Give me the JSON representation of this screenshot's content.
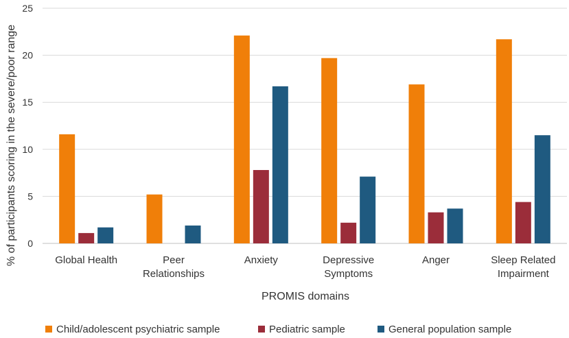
{
  "chart_data": {
    "type": "bar",
    "title": "",
    "xlabel": "PROMIS domains",
    "ylabel": "% of participants scoring in the severe/poor range",
    "ylim": [
      0,
      25
    ],
    "yticks": [
      0,
      5,
      10,
      15,
      20,
      25
    ],
    "grid": true,
    "legend_position": "bottom",
    "categories": [
      [
        "Global Health"
      ],
      [
        "Peer",
        "Relationships"
      ],
      [
        "Anxiety"
      ],
      [
        "Depressive",
        "Symptoms"
      ],
      [
        "Anger"
      ],
      [
        "Sleep Related",
        "Impairment"
      ]
    ],
    "series": [
      {
        "name": "Child/adolescent psychiatric sample",
        "color": "#f07f09",
        "values": [
          11.6,
          5.2,
          22.1,
          19.7,
          16.9,
          21.7
        ]
      },
      {
        "name": "Pediatric sample",
        "color": "#9b2d3a",
        "values": [
          1.1,
          0,
          7.8,
          2.2,
          3.3,
          4.4
        ]
      },
      {
        "name": "General population sample",
        "color": "#1f5a80",
        "values": [
          1.7,
          1.9,
          16.7,
          7.1,
          3.7,
          11.5
        ]
      }
    ]
  }
}
